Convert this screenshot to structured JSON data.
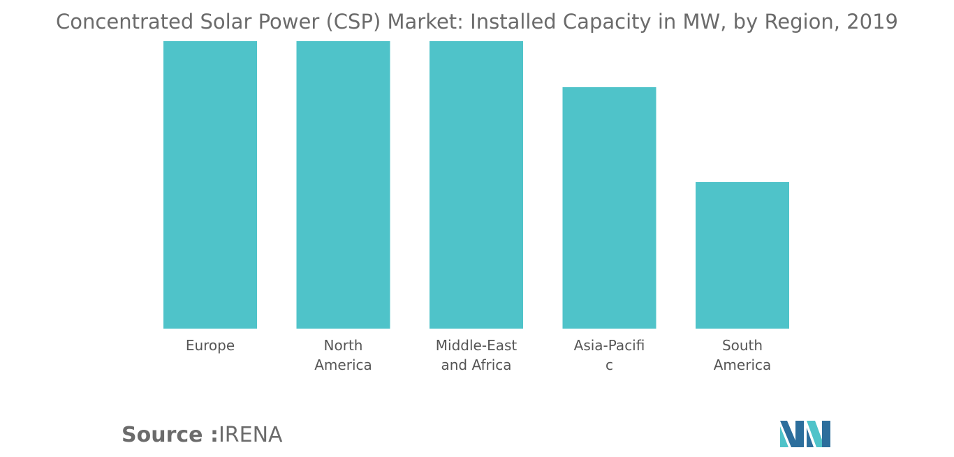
{
  "title": "Concentrated Solar Power (CSP) Market: Installed Capacity in MW, by Region, 2019",
  "source": {
    "prefix": "Source :",
    "text": "IRENA"
  },
  "colors": {
    "bar": "#4fc3c9",
    "logo_dark": "#2c6e9c",
    "logo_light": "#4fc3c9"
  },
  "logo": {
    "icon": "mordor-intelligence-logo"
  },
  "chart_data": {
    "type": "bar",
    "categories": [
      "Europe",
      "North America",
      "Middle-East and Africa",
      "Asia-Pacific",
      "South America"
    ],
    "category_lines": [
      [
        "Europe"
      ],
      [
        "North",
        "America"
      ],
      [
        "Middle-East",
        "and Africa"
      ],
      [
        "Asia-Pacifi",
        "c"
      ],
      [
        "South",
        "America"
      ]
    ],
    "values": [
      100,
      100,
      100,
      84,
      51
    ],
    "ylim": [
      0,
      100
    ],
    "xlabel": "",
    "ylabel": "",
    "grid": false,
    "legend": "none"
  }
}
